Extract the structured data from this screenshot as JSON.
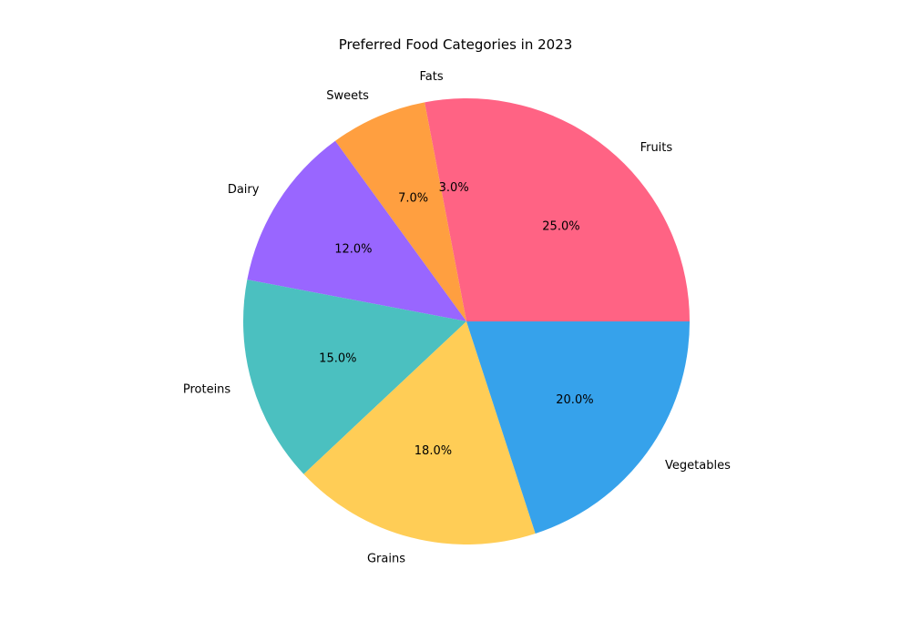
{
  "chart_data": {
    "type": "pie",
    "title": "Preferred Food Categories in 2023",
    "start_angle_deg": 90,
    "direction": "counterclockwise",
    "slices": [
      {
        "label": "Fats",
        "value": 3.0,
        "pct_label": "3.0%",
        "color": "#ff6384"
      },
      {
        "label": "Sweets",
        "value": 7.0,
        "pct_label": "7.0%",
        "color": "#ff9f40"
      },
      {
        "label": "Dairy",
        "value": 12.0,
        "pct_label": "12.0%",
        "color": "#9966ff"
      },
      {
        "label": "Proteins",
        "value": 15.0,
        "pct_label": "15.0%",
        "color": "#4bc0c0"
      },
      {
        "label": "Grains",
        "value": 18.0,
        "pct_label": "18.0%",
        "color": "#ffcd56"
      },
      {
        "label": "Vegetables",
        "value": 20.0,
        "pct_label": "20.0%",
        "color": "#36a2eb"
      },
      {
        "label": "Fruits",
        "value": 25.0,
        "pct_label": "25.0%",
        "color": "#ff6384"
      }
    ]
  }
}
